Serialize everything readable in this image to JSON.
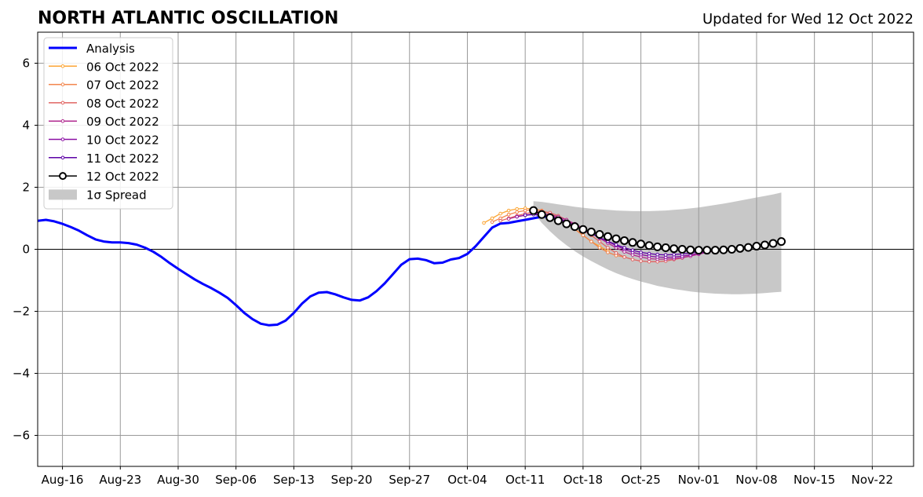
{
  "chart_data": {
    "type": "line",
    "title": "NORTH ATLANTIC OSCILLATION",
    "subtitle": "Updated for Wed 12 Oct 2022",
    "xlabel": "",
    "ylabel": "",
    "x_range": [
      "2022-08-13",
      "2022-11-27"
    ],
    "ylim": [
      -7,
      7
    ],
    "y_ticks": [
      -6,
      -4,
      -2,
      0,
      2,
      4,
      6
    ],
    "y_tick_labels": [
      "−6",
      "−4",
      "−2",
      "0",
      "2",
      "4",
      "6"
    ],
    "x_ticks": [
      "2022-08-16",
      "2022-08-23",
      "2022-08-30",
      "2022-09-06",
      "2022-09-13",
      "2022-09-20",
      "2022-09-27",
      "2022-10-04",
      "2022-10-11",
      "2022-10-18",
      "2022-10-25",
      "2022-11-01",
      "2022-11-08",
      "2022-11-15",
      "2022-11-22"
    ],
    "x_tick_labels": [
      "Aug-16",
      "Aug-23",
      "Aug-30",
      "Sep-06",
      "Sep-13",
      "Sep-20",
      "Sep-27",
      "Oct-04",
      "Oct-11",
      "Oct-18",
      "Oct-25",
      "Nov-01",
      "Nov-08",
      "Nov-15",
      "Nov-22"
    ],
    "grid": true,
    "legend_position": "top-left",
    "series": [
      {
        "name": "Analysis",
        "color": "#0000ff",
        "marker": "none",
        "start": "2022-08-13",
        "values": [
          0.92,
          0.95,
          0.9,
          0.82,
          0.72,
          0.6,
          0.45,
          0.32,
          0.25,
          0.22,
          0.22,
          0.2,
          0.15,
          0.05,
          -0.08,
          -0.25,
          -0.45,
          -0.63,
          -0.8,
          -0.97,
          -1.12,
          -1.25,
          -1.4,
          -1.57,
          -1.8,
          -2.05,
          -2.25,
          -2.4,
          -2.45,
          -2.43,
          -2.3,
          -2.05,
          -1.75,
          -1.52,
          -1.4,
          -1.38,
          -1.45,
          -1.55,
          -1.63,
          -1.65,
          -1.55,
          -1.35,
          -1.1,
          -0.8,
          -0.5,
          -0.32,
          -0.3,
          -0.35,
          -0.45,
          -0.43,
          -0.33,
          -0.28,
          -0.15,
          0.1,
          0.4,
          0.7,
          0.83,
          0.85,
          0.9,
          0.95,
          1.0,
          1.05,
          1.05,
          1.02
        ]
      },
      {
        "name": "06 Oct 2022",
        "color": "#fca636",
        "marker": "small",
        "start": "2022-10-06",
        "values": [
          0.85,
          1.0,
          1.15,
          1.25,
          1.3,
          1.32,
          1.3,
          1.25,
          1.15,
          1.0,
          0.85,
          0.65,
          0.45,
          0.25,
          0.1,
          -0.05
        ]
      },
      {
        "name": "07 Oct 2022",
        "color": "#f2844b",
        "marker": "small",
        "start": "2022-10-07",
        "values": [
          0.88,
          1.0,
          1.12,
          1.2,
          1.25,
          1.28,
          1.25,
          1.15,
          1.0,
          0.85,
          0.65,
          0.45,
          0.25,
          0.05,
          -0.1,
          -0.2,
          -0.25
        ]
      },
      {
        "name": "08 Oct 2022",
        "color": "#e16462",
        "marker": "small",
        "start": "2022-10-08",
        "values": [
          0.92,
          1.0,
          1.08,
          1.15,
          1.2,
          1.22,
          1.18,
          1.08,
          0.95,
          0.8,
          0.62,
          0.45,
          0.25,
          0.05,
          -0.12,
          -0.25,
          -0.33,
          -0.38,
          -0.4,
          -0.4,
          -0.38,
          -0.33,
          -0.28,
          -0.2,
          -0.12,
          -0.05
        ]
      },
      {
        "name": "09 Oct 2022",
        "color": "#b12a90",
        "marker": "small",
        "start": "2022-10-09",
        "values": [
          0.98,
          1.05,
          1.1,
          1.15,
          1.15,
          1.12,
          1.05,
          0.95,
          0.82,
          0.68,
          0.52,
          0.36,
          0.2,
          0.05,
          -0.08,
          -0.18,
          -0.25,
          -0.3,
          -0.32,
          -0.32,
          -0.3,
          -0.27,
          -0.22,
          -0.16,
          -0.1,
          -0.05
        ]
      },
      {
        "name": "10 Oct 2022",
        "color": "#8b10a5",
        "marker": "small",
        "start": "2022-10-10",
        "values": [
          1.05,
          1.1,
          1.13,
          1.12,
          1.08,
          1.0,
          0.9,
          0.78,
          0.65,
          0.52,
          0.38,
          0.25,
          0.12,
          0.0,
          -0.1,
          -0.17,
          -0.22,
          -0.25,
          -0.26,
          -0.25,
          -0.22,
          -0.18,
          -0.13,
          -0.08,
          -0.03
        ]
      },
      {
        "name": "11 Oct 2022",
        "color": "#5c01a6",
        "marker": "small",
        "start": "2022-10-11",
        "values": [
          1.1,
          1.12,
          1.1,
          1.05,
          0.97,
          0.87,
          0.75,
          0.62,
          0.5,
          0.38,
          0.26,
          0.15,
          0.05,
          -0.03,
          -0.1,
          -0.14,
          -0.17,
          -0.18,
          -0.17,
          -0.15,
          -0.12,
          -0.08,
          -0.04,
          0.0
        ]
      },
      {
        "name": "12 Oct 2022",
        "color": "#000000",
        "marker": "open-circle",
        "start": "2022-10-12",
        "values": [
          1.25,
          1.12,
          1.02,
          0.92,
          0.82,
          0.73,
          0.64,
          0.56,
          0.48,
          0.41,
          0.34,
          0.28,
          0.22,
          0.17,
          0.12,
          0.08,
          0.05,
          0.02,
          0.0,
          -0.02,
          -0.03,
          -0.03,
          -0.03,
          -0.02,
          0.0,
          0.03,
          0.06,
          0.1,
          0.14,
          0.19,
          0.25
        ]
      }
    ],
    "spread": {
      "name": "1σ Spread",
      "color": "#c8c8c8",
      "start": "2022-10-12",
      "upper": [
        1.55,
        1.53,
        1.49,
        1.45,
        1.41,
        1.37,
        1.34,
        1.31,
        1.29,
        1.27,
        1.25,
        1.24,
        1.23,
        1.23,
        1.23,
        1.24,
        1.25,
        1.27,
        1.29,
        1.32,
        1.35,
        1.39,
        1.43,
        1.47,
        1.52,
        1.57,
        1.62,
        1.67,
        1.72,
        1.77,
        1.83
      ],
      "lower": [
        1.2,
        0.85,
        0.58,
        0.34,
        0.13,
        -0.06,
        -0.23,
        -0.38,
        -0.52,
        -0.65,
        -0.77,
        -0.87,
        -0.96,
        -1.04,
        -1.11,
        -1.18,
        -1.23,
        -1.28,
        -1.32,
        -1.36,
        -1.39,
        -1.41,
        -1.43,
        -1.44,
        -1.45,
        -1.45,
        -1.44,
        -1.43,
        -1.41,
        -1.39,
        -1.37
      ]
    }
  }
}
